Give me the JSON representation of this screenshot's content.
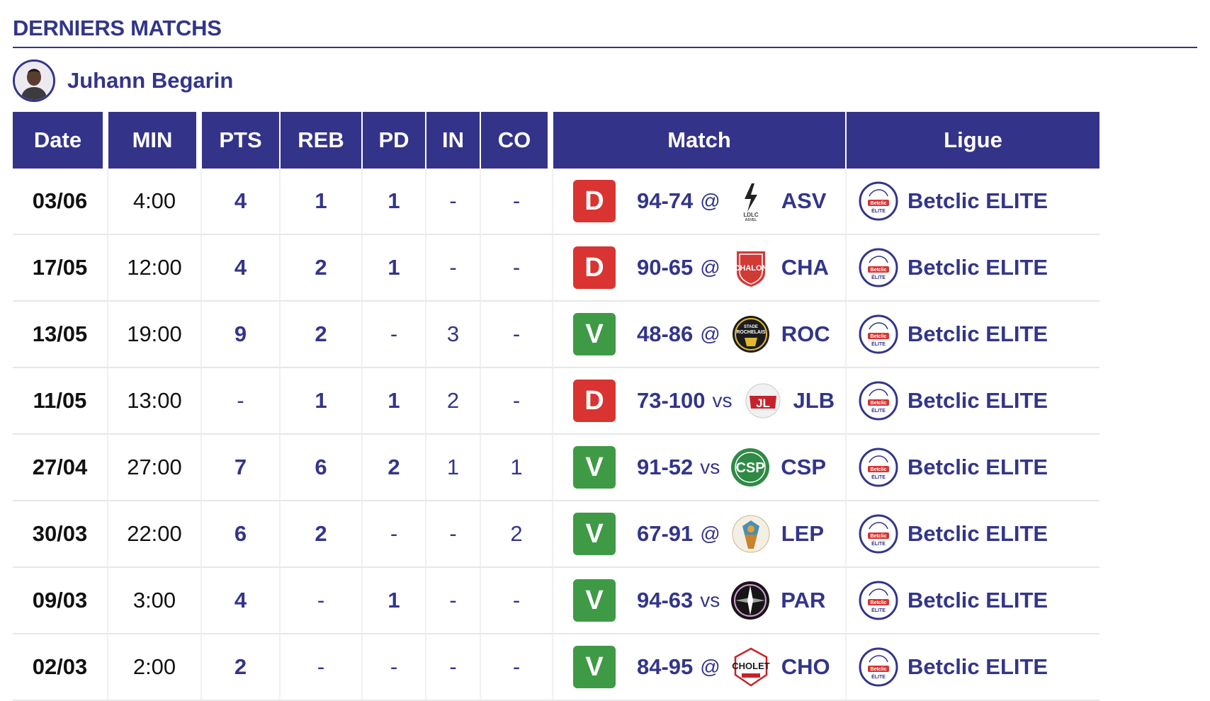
{
  "section": {
    "title": "DERNIERS MATCHS"
  },
  "player": {
    "name": "Juhann Begarin"
  },
  "table": {
    "headers": [
      "Date",
      "MIN",
      "PTS",
      "REB",
      "PD",
      "IN",
      "CO",
      "Match",
      "Ligue"
    ],
    "rows": [
      {
        "date": "03/06",
        "min": "4:00",
        "pts": "4",
        "reb": "1",
        "pd": "1",
        "in": "-",
        "co": "-",
        "result": "D",
        "score": "94-74",
        "loc": "@",
        "opp": "ASV",
        "league": "Betclic ELITE"
      },
      {
        "date": "17/05",
        "min": "12:00",
        "pts": "4",
        "reb": "2",
        "pd": "1",
        "in": "-",
        "co": "-",
        "result": "D",
        "score": "90-65",
        "loc": "@",
        "opp": "CHA",
        "league": "Betclic ELITE"
      },
      {
        "date": "13/05",
        "min": "19:00",
        "pts": "9",
        "reb": "2",
        "pd": "-",
        "in": "3",
        "co": "-",
        "result": "V",
        "score": "48-86",
        "loc": "@",
        "opp": "ROC",
        "league": "Betclic ELITE"
      },
      {
        "date": "11/05",
        "min": "13:00",
        "pts": "-",
        "reb": "1",
        "pd": "1",
        "in": "2",
        "co": "-",
        "result": "D",
        "score": "73-100",
        "loc": "vs",
        "opp": "JLB",
        "league": "Betclic ELITE"
      },
      {
        "date": "27/04",
        "min": "27:00",
        "pts": "7",
        "reb": "6",
        "pd": "2",
        "in": "1",
        "co": "1",
        "result": "V",
        "score": "91-52",
        "loc": "vs",
        "opp": "CSP",
        "league": "Betclic ELITE"
      },
      {
        "date": "30/03",
        "min": "22:00",
        "pts": "6",
        "reb": "2",
        "pd": "-",
        "in": "-",
        "co": "2",
        "result": "V",
        "score": "67-91",
        "loc": "@",
        "opp": "LEP",
        "league": "Betclic ELITE"
      },
      {
        "date": "09/03",
        "min": "3:00",
        "pts": "4",
        "reb": "-",
        "pd": "1",
        "in": "-",
        "co": "-",
        "result": "V",
        "score": "94-63",
        "loc": "vs",
        "opp": "PAR",
        "league": "Betclic ELITE"
      },
      {
        "date": "02/03",
        "min": "2:00",
        "pts": "2",
        "reb": "-",
        "pd": "-",
        "in": "-",
        "co": "-",
        "result": "V",
        "score": "84-95",
        "loc": "@",
        "opp": "CHO",
        "league": "Betclic ELITE"
      }
    ]
  },
  "colors": {
    "accent": "#33358a",
    "defeat": "#d93431",
    "victory": "#3f9a45"
  },
  "logos": {
    "ASV": {
      "icon": "asvel-lightning-icon",
      "text": "LDLC ASVEL"
    },
    "CHA": {
      "icon": "chalon-shield-icon",
      "text": "ÉLAN CHALON"
    },
    "ROC": {
      "icon": "stade-rochelais-icon",
      "text": "STADE ROCHELAIS"
    },
    "JLB": {
      "icon": "jl-bourg-icon",
      "text": "JL"
    },
    "CSP": {
      "icon": "csp-limoges-icon",
      "text": "CSP"
    },
    "LEP": {
      "icon": "le-portel-icon",
      "text": ""
    },
    "PAR": {
      "icon": "paris-basketball-icon",
      "text": ""
    },
    "CHO": {
      "icon": "cholet-basket-icon",
      "text": "CHOLET"
    },
    "league": {
      "icon": "betclic-elite-icon",
      "text": "Betclic ÉLITE"
    }
  }
}
